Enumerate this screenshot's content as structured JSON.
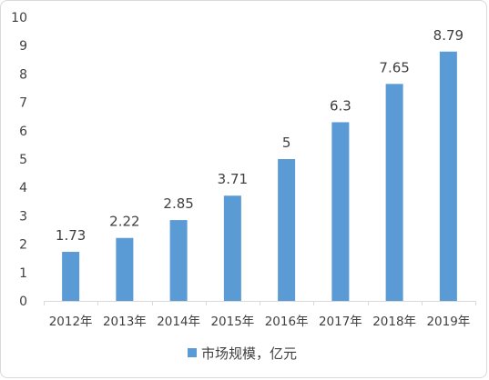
{
  "chart_data": {
    "type": "bar",
    "categories": [
      "2012年",
      "2013年",
      "2014年",
      "2015年",
      "2016年",
      "2017年",
      "2018年",
      "2019年"
    ],
    "series": [
      {
        "name": "市场规模，亿元",
        "values": [
          1.73,
          2.22,
          2.85,
          3.71,
          5,
          6.3,
          7.65,
          8.79
        ],
        "labels": [
          "1.73",
          "2.22",
          "2.85",
          "3.71",
          "5",
          "6.3",
          "7.65",
          "8.79"
        ],
        "color": "#5b9bd5"
      }
    ],
    "yticks": [
      "0",
      "1",
      "2",
      "3",
      "4",
      "5",
      "6",
      "7",
      "8",
      "9",
      "10"
    ],
    "ylim": [
      0,
      10
    ],
    "title": "",
    "xlabel": "",
    "ylabel": "",
    "grid": false,
    "legend_position": "bottom",
    "axis_color": "#d9d9d9",
    "text_color": "#404040"
  }
}
